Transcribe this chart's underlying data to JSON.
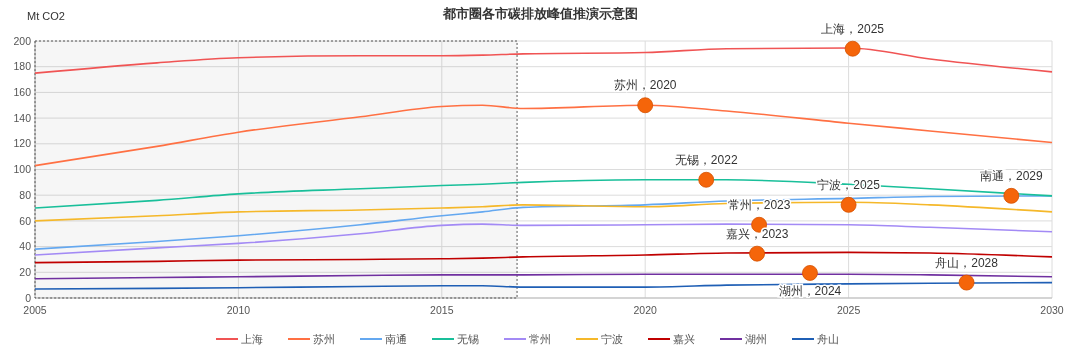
{
  "chart_data": {
    "type": "line",
    "title": "都市圈各市碳排放峰值推演示意图",
    "ylabel": "Mt CO2",
    "x": [
      2005,
      2008,
      2010,
      2013,
      2015,
      2016,
      2017,
      2020,
      2022,
      2025,
      2027,
      2030
    ],
    "xlim": [
      2005,
      2030
    ],
    "xticks": [
      2005,
      2010,
      2015,
      2020,
      2025,
      2030
    ],
    "ylim": [
      0,
      200
    ],
    "yticks": [
      0,
      20,
      40,
      60,
      80,
      100,
      120,
      140,
      160,
      180,
      200
    ],
    "grid": true,
    "legend": "bottom",
    "marker": "none",
    "series": [
      {
        "name": "上海",
        "color": "#f05454",
        "values": [
          175,
          183,
          187,
          188.5,
          188.5,
          189,
          190,
          191,
          194,
          194.5,
          186,
          176
        ]
      },
      {
        "name": "苏州",
        "color": "#ff7043",
        "values": [
          103,
          118,
          129,
          141,
          149,
          150,
          147.5,
          150,
          145.5,
          136,
          130,
          121
        ]
      },
      {
        "name": "南通",
        "color": "#64a8f0",
        "values": [
          38,
          44,
          48.5,
          57,
          64,
          67,
          70.5,
          72.5,
          75.5,
          77.5,
          79,
          79.5
        ]
      },
      {
        "name": "无锡",
        "color": "#19bf9a",
        "values": [
          70,
          76,
          81,
          85,
          87.5,
          88.5,
          90,
          92,
          92,
          88.5,
          85,
          79.5
        ]
      },
      {
        "name": "常州",
        "color": "#a38af5",
        "values": [
          33.5,
          39,
          42.5,
          50,
          56.5,
          57.5,
          56.5,
          57,
          57.5,
          57,
          55,
          51.5
        ]
      },
      {
        "name": "宁波",
        "color": "#f5b82a",
        "values": [
          60,
          64,
          67,
          68.5,
          70,
          71,
          72.5,
          71,
          73.5,
          74.5,
          72.5,
          67
        ]
      },
      {
        "name": "嘉兴",
        "color": "#c00000",
        "values": [
          27.5,
          28.5,
          29.5,
          30,
          30.5,
          31,
          32,
          33.5,
          35,
          35.5,
          35,
          32
        ]
      },
      {
        "name": "湖州",
        "color": "#7030a0",
        "values": [
          15,
          16,
          16.5,
          17.5,
          18,
          18,
          18,
          18.5,
          18.5,
          18.5,
          18,
          16.5
        ]
      },
      {
        "name": "舟山",
        "color": "#1f5fb5",
        "values": [
          7,
          7.5,
          8,
          9,
          9.5,
          9.5,
          8.5,
          8.5,
          10,
          11,
          11.5,
          12
        ]
      },
      {
        "type": "scatter",
        "color": "#f5650a",
        "marker": "circle",
        "x": [
          2025.1,
          2020,
          2021.5,
          2029,
          2025,
          2022.8,
          2022.75,
          2024.05,
          2027.9
        ],
        "values": [
          194,
          150,
          92,
          79.5,
          72.5,
          57,
          34.5,
          19.5,
          12
        ]
      }
    ],
    "annotations": [
      {
        "text": "上海，2025",
        "x": 2025.1,
        "y": 194
      },
      {
        "text": "苏州，2020",
        "x": 2020,
        "y": 150
      },
      {
        "text": "无锡，2022",
        "x": 2021.5,
        "y": 92
      },
      {
        "text": "南通，2029",
        "x": 2029,
        "y": 79.5
      },
      {
        "text": "宁波，2025",
        "x": 2025,
        "y": 72.5
      },
      {
        "text": "常州，2023",
        "x": 2022.8,
        "y": 57
      },
      {
        "text": "嘉兴，2023",
        "x": 2022.75,
        "y": 34.5
      },
      {
        "text": "湖州，2024",
        "x": 2024.05,
        "y": 19.5
      },
      {
        "text": "舟山，2028",
        "x": 2027.9,
        "y": 12
      }
    ],
    "bands": [
      {
        "axis": "x",
        "from": 2005,
        "to": 2016.85,
        "color": "#555555"
      }
    ]
  }
}
